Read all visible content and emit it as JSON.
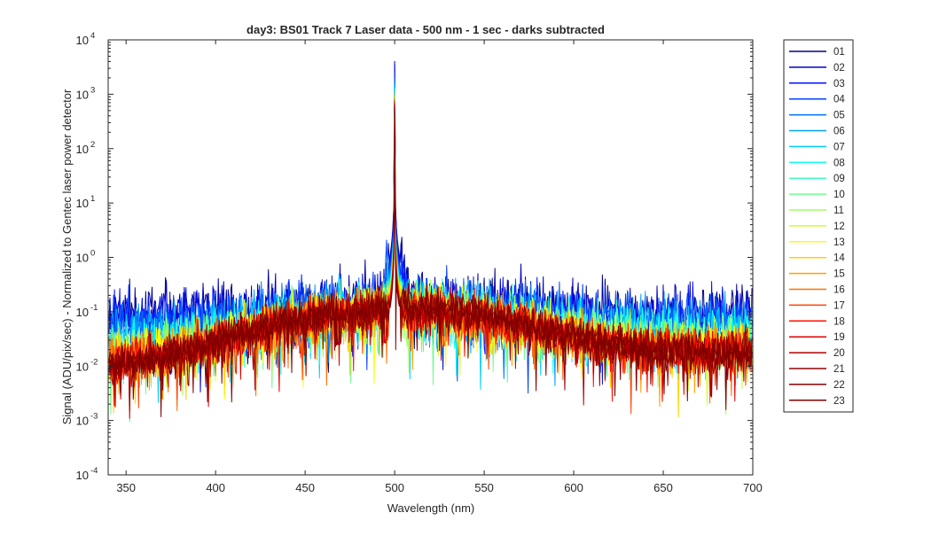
{
  "chart_data": {
    "type": "line",
    "title": "day3: BS01  Track 7 Laser data - 500 nm - 1 sec - darks subtracted",
    "xlabel": "Wavelength (nm)",
    "ylabel": "Signal (ADU/pix/sec) - Normalized to Gentec laser power detector",
    "xlim": [
      340,
      700
    ],
    "ylim": [
      0.0001,
      10000
    ],
    "yscale": "log",
    "grid": false,
    "legend_position": "outside-right",
    "x_ticks": [
      {
        "v": 350,
        "label": "350"
      },
      {
        "v": 400,
        "label": "400"
      },
      {
        "v": 450,
        "label": "450"
      },
      {
        "v": 500,
        "label": "500"
      },
      {
        "v": 550,
        "label": "550"
      },
      {
        "v": 600,
        "label": "600"
      },
      {
        "v": 650,
        "label": "650"
      },
      {
        "v": 700,
        "label": "700"
      }
    ],
    "y_ticks": [
      {
        "exp": -4,
        "base": "10",
        "sup": "-4"
      },
      {
        "exp": -3,
        "base": "10",
        "sup": "-3"
      },
      {
        "exp": -2,
        "base": "10",
        "sup": "-2"
      },
      {
        "exp": -1,
        "base": "10",
        "sup": "-1"
      },
      {
        "exp": 0,
        "base": "10",
        "sup": "0"
      },
      {
        "exp": 1,
        "base": "10",
        "sup": "1"
      },
      {
        "exp": 2,
        "base": "10",
        "sup": "2"
      },
      {
        "exp": 3,
        "base": "10",
        "sup": "3"
      },
      {
        "exp": 4,
        "base": "10",
        "sup": "4"
      }
    ],
    "peak_wavelength": 500,
    "series": [
      {
        "name": "01",
        "color": "#00008f",
        "peak": 4000,
        "floor_min": 0.08,
        "floor_max": 0.08
      },
      {
        "name": "02",
        "color": "#0000c5",
        "peak": 3500,
        "floor_min": 0.075,
        "floor_max": 0.075
      },
      {
        "name": "03",
        "color": "#0010ff",
        "peak": 3000,
        "floor_min": 0.07,
        "floor_max": 0.07
      },
      {
        "name": "04",
        "color": "#0040ff",
        "peak": 2500,
        "floor_min": 0.06,
        "floor_max": 0.065
      },
      {
        "name": "05",
        "color": "#0070ff",
        "peak": 2000,
        "floor_min": 0.05,
        "floor_max": 0.06
      },
      {
        "name": "06",
        "color": "#00a0ff",
        "peak": 1700,
        "floor_min": 0.04,
        "floor_max": 0.05
      },
      {
        "name": "07",
        "color": "#00d0ff",
        "peak": 1500,
        "floor_min": 0.03,
        "floor_max": 0.045
      },
      {
        "name": "08",
        "color": "#10ffef",
        "peak": 1300,
        "floor_min": 0.025,
        "floor_max": 0.04
      },
      {
        "name": "09",
        "color": "#40ffbf",
        "peak": 1200,
        "floor_min": 0.02,
        "floor_max": 0.035
      },
      {
        "name": "10",
        "color": "#70ff8f",
        "peak": 1100,
        "floor_min": 0.018,
        "floor_max": 0.03
      },
      {
        "name": "11",
        "color": "#a0ff60",
        "peak": 1000,
        "floor_min": 0.016,
        "floor_max": 0.028
      },
      {
        "name": "12",
        "color": "#cfff30",
        "peak": 950,
        "floor_min": 0.015,
        "floor_max": 0.026
      },
      {
        "name": "13",
        "color": "#ffff00",
        "peak": 900,
        "floor_min": 0.014,
        "floor_max": 0.024
      },
      {
        "name": "14",
        "color": "#ffd000",
        "peak": 850,
        "floor_min": 0.013,
        "floor_max": 0.022
      },
      {
        "name": "15",
        "color": "#ffa000",
        "peak": 800,
        "floor_min": 0.013,
        "floor_max": 0.021
      },
      {
        "name": "16",
        "color": "#ff7000",
        "peak": 750,
        "floor_min": 0.012,
        "floor_max": 0.02
      },
      {
        "name": "17",
        "color": "#ff4000",
        "peak": 700,
        "floor_min": 0.012,
        "floor_max": 0.02
      },
      {
        "name": "18",
        "color": "#ff1000",
        "peak": 650,
        "floor_min": 0.011,
        "floor_max": 0.019
      },
      {
        "name": "19",
        "color": "#df0000",
        "peak": 600,
        "floor_min": 0.011,
        "floor_max": 0.019
      },
      {
        "name": "20",
        "color": "#b00000",
        "peak": 550,
        "floor_min": 0.01,
        "floor_max": 0.018
      },
      {
        "name": "21",
        "color": "#900000",
        "peak": 500,
        "floor_min": 0.01,
        "floor_max": 0.018
      },
      {
        "name": "22",
        "color": "#800000",
        "peak": 450,
        "floor_min": 0.01,
        "floor_max": 0.018
      },
      {
        "name": "23",
        "color": "#800000",
        "peak": 420,
        "floor_min": 0.01,
        "floor_max": 0.018
      }
    ]
  }
}
